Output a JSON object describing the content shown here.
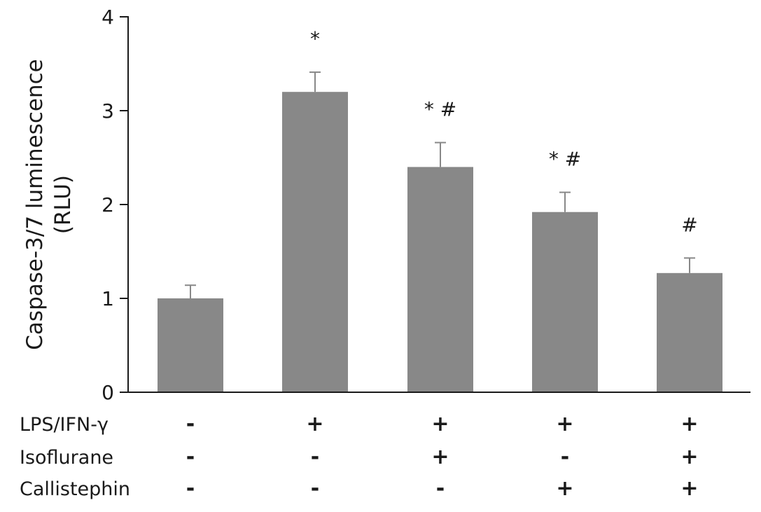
{
  "chart_data": {
    "type": "bar",
    "ylabel_lines": [
      "Caspase-3/7 luminescence",
      "(RLU)"
    ],
    "ylim": [
      0,
      4
    ],
    "yticks": [
      0,
      1,
      2,
      3,
      4
    ],
    "ytick_labels": [
      "0",
      "1",
      "2",
      "3",
      "4"
    ],
    "grid": false,
    "bar_color": "#888888",
    "error_color": "#888888",
    "axis_color": "#1a1a1a",
    "values": [
      1.0,
      3.2,
      2.4,
      1.92,
      1.27
    ],
    "errors": [
      0.14,
      0.21,
      0.26,
      0.21,
      0.16
    ],
    "annotations": [
      "",
      "*",
      "* #",
      "* #",
      "#"
    ],
    "conditions": [
      {
        "label": "LPS/IFN-γ",
        "signs": [
          "-",
          "+",
          "+",
          "+",
          "+"
        ]
      },
      {
        "label": "Isoflurane",
        "signs": [
          "-",
          "-",
          "+",
          "-",
          "+"
        ]
      },
      {
        "label": "Callistephin",
        "signs": [
          "-",
          "-",
          "-",
          "+",
          "+"
        ]
      }
    ]
  }
}
